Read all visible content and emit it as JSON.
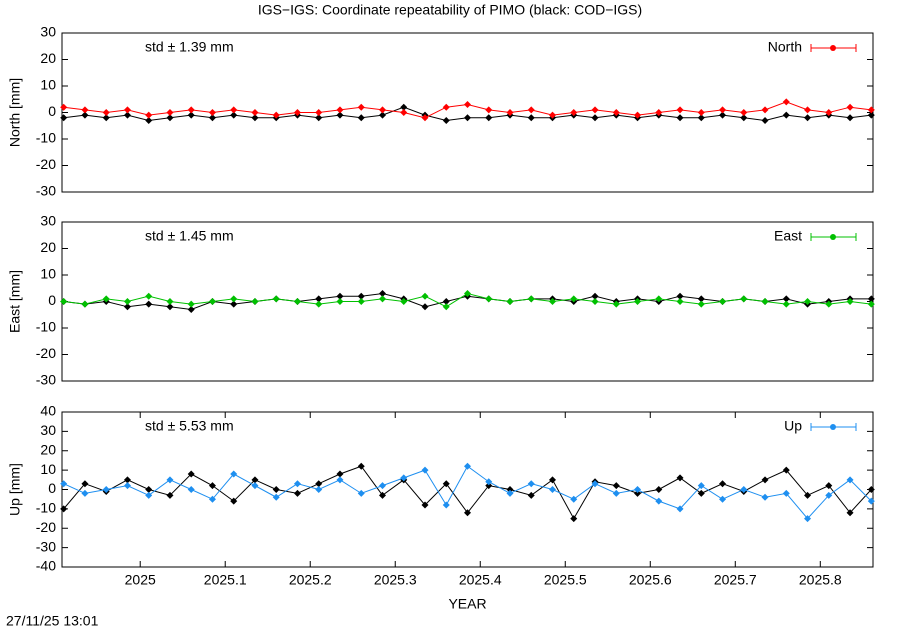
{
  "title": "IGS−IGS: Coordinate repeatability of PIMO (black: COD−IGS)",
  "timestamp": "27/11/25 13:01",
  "chart_data": [
    {
      "type": "line",
      "ylabel": "North [mm]",
      "annotation": "std ± 1.39 mm",
      "annotation_color": "#ff0000",
      "xlim": [
        2024.908,
        2025.862
      ],
      "ylim": [
        -30,
        30
      ],
      "yticks": [
        -30,
        -20,
        -10,
        0,
        10,
        20,
        30
      ],
      "x": [
        2024.91,
        2024.935,
        2024.96,
        2024.985,
        2025.01,
        2025.035,
        2025.06,
        2025.085,
        2025.11,
        2025.135,
        2025.16,
        2025.185,
        2025.21,
        2025.235,
        2025.26,
        2025.285,
        2025.31,
        2025.335,
        2025.36,
        2025.385,
        2025.41,
        2025.435,
        2025.46,
        2025.485,
        2025.51,
        2025.535,
        2025.56,
        2025.585,
        2025.61,
        2025.635,
        2025.66,
        2025.685,
        2025.71,
        2025.735,
        2025.76,
        2025.785,
        2025.81,
        2025.835,
        2025.86
      ],
      "series": [
        {
          "color": "#000000",
          "values": [
            -2,
            -1,
            -2,
            -1,
            -3,
            -2,
            -1,
            -2,
            -1,
            -2,
            -2,
            -1,
            -2,
            -1,
            -2,
            -1,
            2,
            -1,
            -3,
            -2,
            -2,
            -1,
            -2,
            -2,
            -1,
            -2,
            -1,
            -2,
            -1,
            -2,
            -2,
            -1,
            -2,
            -3,
            -1,
            -2,
            -1,
            -2,
            -1
          ]
        },
        {
          "name": "North",
          "color": "#ff0000",
          "values": [
            2,
            1,
            0,
            1,
            -1,
            0,
            1,
            0,
            1,
            0,
            -1,
            0,
            0,
            1,
            2,
            1,
            0,
            -2,
            2,
            3,
            1,
            0,
            1,
            -1,
            0,
            1,
            0,
            -1,
            0,
            1,
            0,
            1,
            0,
            1,
            4,
            1,
            0,
            2,
            1
          ]
        }
      ]
    },
    {
      "type": "line",
      "ylabel": "East [mm]",
      "annotation": "std ± 1.45 mm",
      "annotation_color": "#00c000",
      "xlim": [
        2024.908,
        2025.862
      ],
      "ylim": [
        -30,
        30
      ],
      "yticks": [
        -30,
        -20,
        -10,
        0,
        10,
        20,
        30
      ],
      "x": [
        2024.91,
        2024.935,
        2024.96,
        2024.985,
        2025.01,
        2025.035,
        2025.06,
        2025.085,
        2025.11,
        2025.135,
        2025.16,
        2025.185,
        2025.21,
        2025.235,
        2025.26,
        2025.285,
        2025.31,
        2025.335,
        2025.36,
        2025.385,
        2025.41,
        2025.435,
        2025.46,
        2025.485,
        2025.51,
        2025.535,
        2025.56,
        2025.585,
        2025.61,
        2025.635,
        2025.66,
        2025.685,
        2025.71,
        2025.735,
        2025.76,
        2025.785,
        2025.81,
        2025.835,
        2025.86
      ],
      "series": [
        {
          "color": "#000000",
          "values": [
            0,
            -1,
            0,
            -2,
            -1,
            -2,
            -3,
            0,
            -1,
            0,
            1,
            0,
            1,
            2,
            2,
            3,
            1,
            -2,
            0,
            2,
            1,
            0,
            1,
            1,
            0,
            2,
            0,
            1,
            0,
            2,
            1,
            0,
            1,
            0,
            1,
            -1,
            0,
            1,
            1
          ]
        },
        {
          "name": "East",
          "color": "#00c000",
          "values": [
            0,
            -1,
            1,
            0,
            2,
            0,
            -1,
            0,
            1,
            0,
            1,
            0,
            -1,
            0,
            0,
            1,
            0,
            2,
            -2,
            3,
            1,
            0,
            1,
            0,
            1,
            0,
            -1,
            0,
            1,
            0,
            -1,
            0,
            1,
            0,
            -1,
            0,
            -1,
            0,
            -1
          ]
        }
      ]
    },
    {
      "type": "line",
      "ylabel": "Up [mm]",
      "xlabel": "YEAR",
      "annotation": "std ± 5.53 mm",
      "annotation_color": "#1e8ff0",
      "xlim": [
        2024.908,
        2025.862
      ],
      "xticks": [
        2025,
        2025.1,
        2025.2,
        2025.3,
        2025.4,
        2025.5,
        2025.6,
        2025.7,
        2025.8
      ],
      "ylim": [
        -40,
        40
      ],
      "yticks": [
        -40,
        -30,
        -20,
        -10,
        0,
        10,
        20,
        30,
        40
      ],
      "x": [
        2024.91,
        2024.935,
        2024.96,
        2024.985,
        2025.01,
        2025.035,
        2025.06,
        2025.085,
        2025.11,
        2025.135,
        2025.16,
        2025.185,
        2025.21,
        2025.235,
        2025.26,
        2025.285,
        2025.31,
        2025.335,
        2025.36,
        2025.385,
        2025.41,
        2025.435,
        2025.46,
        2025.485,
        2025.51,
        2025.535,
        2025.56,
        2025.585,
        2025.61,
        2025.635,
        2025.66,
        2025.685,
        2025.71,
        2025.735,
        2025.76,
        2025.785,
        2025.81,
        2025.835,
        2025.86
      ],
      "series": [
        {
          "color": "#000000",
          "values": [
            -10,
            3,
            -1,
            5,
            0,
            -3,
            8,
            2,
            -6,
            5,
            0,
            -2,
            3,
            8,
            12,
            -3,
            5,
            -8,
            3,
            -12,
            2,
            0,
            -3,
            5,
            -15,
            4,
            2,
            -2,
            0,
            6,
            -2,
            3,
            -1,
            5,
            10,
            -3,
            2,
            -12,
            0
          ]
        },
        {
          "name": "Up",
          "color": "#1e8ff0",
          "values": [
            3,
            -2,
            0,
            2,
            -3,
            5,
            0,
            -5,
            8,
            2,
            -4,
            3,
            0,
            5,
            -2,
            2,
            6,
            10,
            -8,
            12,
            4,
            -2,
            3,
            0,
            -5,
            3,
            -2,
            0,
            -6,
            -10,
            2,
            -5,
            0,
            -4,
            -2,
            -15,
            -3,
            5,
            -6
          ]
        }
      ]
    }
  ]
}
